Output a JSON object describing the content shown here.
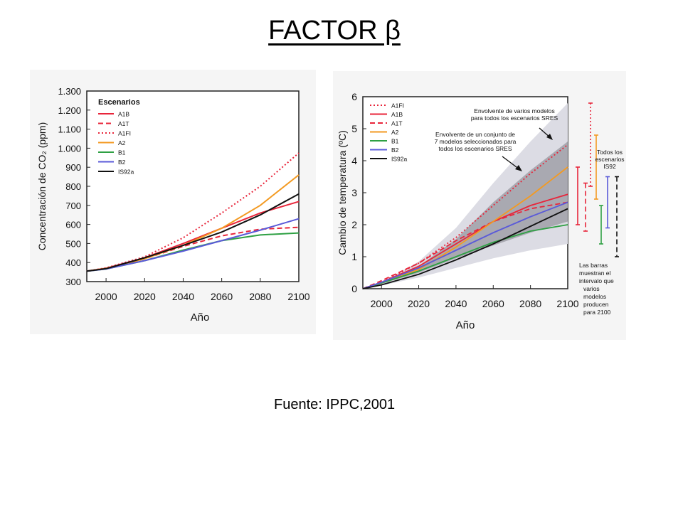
{
  "slide": {
    "title": "FACTOR β",
    "source": "Fuente: IPPC,2001"
  },
  "chart_data": [
    {
      "type": "line",
      "xlabel": "Año",
      "ylabel": "Concentración de CO₂ (ppm)",
      "xlim": [
        1990,
        2100
      ],
      "ylim": [
        300,
        1300
      ],
      "xticks": [
        "2000",
        "2020",
        "2040",
        "2060",
        "2080",
        "2100"
      ],
      "yticks": [
        "300",
        "400",
        "500",
        "600",
        "700",
        "800",
        "900",
        "1.000",
        "1.100",
        "1.200",
        "1.300"
      ],
      "legend": {
        "title": "Escenarios",
        "placement": "top-left"
      },
      "x": [
        1990,
        2000,
        2020,
        2040,
        2060,
        2080,
        2100
      ],
      "series": [
        {
          "name": "A1B",
          "color": "#e8253a",
          "dash": "solid",
          "values": [
            355,
            370,
            425,
            500,
            580,
            660,
            720
          ]
        },
        {
          "name": "A1T",
          "color": "#e8253a",
          "dash": "dashed",
          "values": [
            355,
            368,
            420,
            485,
            540,
            575,
            585
          ]
        },
        {
          "name": "A1FI",
          "color": "#e8253a",
          "dash": "dotted",
          "values": [
            355,
            372,
            430,
            530,
            660,
            800,
            975
          ]
        },
        {
          "name": "A2",
          "color": "#f39a22",
          "dash": "solid",
          "values": [
            355,
            369,
            420,
            490,
            580,
            700,
            860
          ]
        },
        {
          "name": "B1",
          "color": "#2ea043",
          "dash": "solid",
          "values": [
            355,
            366,
            410,
            465,
            515,
            545,
            555
          ]
        },
        {
          "name": "B2",
          "color": "#5a5ad8",
          "dash": "solid",
          "values": [
            355,
            366,
            410,
            460,
            515,
            570,
            630
          ]
        },
        {
          "name": "IS92a",
          "color": "#111111",
          "dash": "solid",
          "values": [
            355,
            368,
            425,
            490,
            560,
            650,
            760
          ]
        }
      ]
    },
    {
      "type": "line",
      "xlabel": "Año",
      "ylabel": "Cambio de temperatura (ºC)",
      "xlim": [
        1990,
        2100
      ],
      "ylim": [
        0,
        6
      ],
      "xticks": [
        "2000",
        "2020",
        "2040",
        "2060",
        "2080",
        "2100"
      ],
      "yticks": [
        "0",
        "1",
        "2",
        "3",
        "4",
        "5",
        "6"
      ],
      "legend": {
        "placement": "top-left"
      },
      "annotations": [
        "Envolvente de varios modelos para todos los escenarios SRES",
        "Envolvente de un conjunto de 7 modelos seleccionados para todos los escenarios SRES"
      ],
      "envelopes": [
        {
          "kind": "outer",
          "color": "#dcdce4",
          "x": [
            1990,
            2000,
            2020,
            2040,
            2060,
            2080,
            2100
          ],
          "low": [
            0,
            0.1,
            0.35,
            0.65,
            0.95,
            1.2,
            1.4
          ],
          "high": [
            0,
            0.2,
            0.85,
            1.9,
            3.3,
            4.6,
            5.8
          ]
        },
        {
          "kind": "inner",
          "color": "#a9a9b1",
          "x": [
            1990,
            2000,
            2020,
            2040,
            2060,
            2080,
            2100
          ],
          "low": [
            0,
            0.15,
            0.5,
            0.95,
            1.35,
            1.75,
            2.1
          ],
          "high": [
            0,
            0.18,
            0.7,
            1.55,
            2.7,
            3.7,
            4.6
          ]
        }
      ],
      "x": [
        1990,
        2000,
        2020,
        2040,
        2060,
        2080,
        2100
      ],
      "series": [
        {
          "name": "A1FI",
          "color": "#e8253a",
          "dash": "dotted",
          "values": [
            0,
            0.2,
            0.8,
            1.6,
            2.6,
            3.6,
            4.5
          ]
        },
        {
          "name": "A1B",
          "color": "#e8253a",
          "dash": "solid",
          "values": [
            0,
            0.2,
            0.7,
            1.4,
            2.1,
            2.6,
            2.95
          ]
        },
        {
          "name": "A1T",
          "color": "#e8253a",
          "dash": "dashed",
          "values": [
            0,
            0.25,
            0.8,
            1.5,
            2.1,
            2.5,
            2.7
          ]
        },
        {
          "name": "A2",
          "color": "#f39a22",
          "dash": "solid",
          "values": [
            0,
            0.18,
            0.6,
            1.3,
            2.1,
            2.9,
            3.8
          ]
        },
        {
          "name": "B1",
          "color": "#2ea043",
          "dash": "solid",
          "values": [
            0,
            0.18,
            0.55,
            1.0,
            1.45,
            1.8,
            2.0
          ]
        },
        {
          "name": "B2",
          "color": "#5a5ad8",
          "dash": "solid",
          "values": [
            0,
            0.2,
            0.65,
            1.2,
            1.75,
            2.25,
            2.7
          ]
        },
        {
          "name": "IS92a",
          "color": "#111111",
          "dash": "solid",
          "values": [
            0,
            0.12,
            0.45,
            0.9,
            1.4,
            1.95,
            2.5
          ]
        }
      ],
      "range_bars": [
        {
          "name": "A1FI",
          "color": "#e8253a",
          "dash": "dotted",
          "low": 3.2,
          "high": 5.8
        },
        {
          "name": "A1B",
          "color": "#e8253a",
          "dash": "solid",
          "low": 2.0,
          "high": 3.8
        },
        {
          "name": "A1T",
          "color": "#e8253a",
          "dash": "dashed",
          "low": 1.8,
          "high": 3.3
        },
        {
          "name": "A2",
          "color": "#f39a22",
          "dash": "solid",
          "low": 2.8,
          "high": 4.8
        },
        {
          "name": "B1",
          "color": "#2ea043",
          "dash": "solid",
          "low": 1.4,
          "high": 2.6
        },
        {
          "name": "B2",
          "color": "#5a5ad8",
          "dash": "solid",
          "low": 1.9,
          "high": 3.5
        },
        {
          "name": "IS92a",
          "color": "#111111",
          "dash": "dashed",
          "low": 1.0,
          "high": 3.5
        }
      ],
      "range_bar_labels": {
        "top": "Todos los escenarios IS92",
        "bottom": "Las barras muestran el intervalo que varios modelos producen para 2100"
      }
    }
  ]
}
